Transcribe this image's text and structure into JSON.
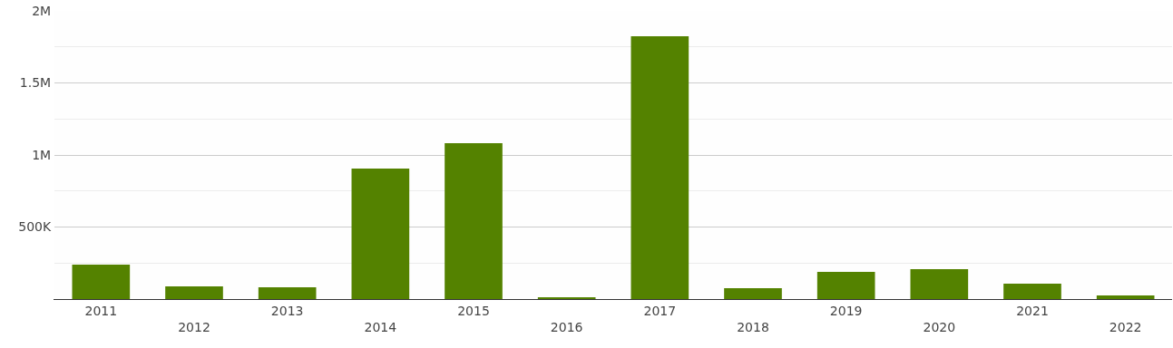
{
  "chart_data": {
    "type": "bar",
    "categories": [
      "2011",
      "2012",
      "2013",
      "2014",
      "2015",
      "2016",
      "2017",
      "2018",
      "2019",
      "2020",
      "2021",
      "2022"
    ],
    "values": [
      239000,
      88000,
      82000,
      906000,
      1082000,
      13000,
      1824000,
      75000,
      189000,
      208000,
      107000,
      25000
    ],
    "color": "#548200",
    "ylim": [
      0,
      2000000
    ],
    "yticks": [
      {
        "value": 0,
        "label": null
      },
      {
        "value": 250000,
        "label": null
      },
      {
        "value": 500000,
        "label": "500K"
      },
      {
        "value": 750000,
        "label": null
      },
      {
        "value": 1000000,
        "label": "1M"
      },
      {
        "value": 1250000,
        "label": null
      },
      {
        "value": 1500000,
        "label": "1.5M"
      },
      {
        "value": 1750000,
        "label": null
      },
      {
        "value": 2000000,
        "label": "2M"
      }
    ],
    "grid": "y"
  }
}
